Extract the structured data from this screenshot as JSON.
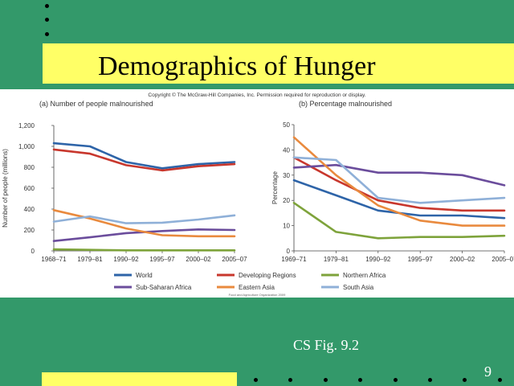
{
  "slide": {
    "title": "Demographics of Hunger",
    "caption": "CS Fig. 9.2",
    "page_number": "9"
  },
  "figure": {
    "copyright": "Copyright © The McGraw-Hill Companies, Inc. Permission required for reproduction or display.",
    "source": "Food and Agriculture Organization 2009"
  },
  "colors": {
    "World": "#2e64a8",
    "Developing Regions": "#c8372d",
    "Northern Africa": "#7ea33b",
    "Sub-Saharan Africa": "#6b4d9c",
    "Eastern Asia": "#e98a3e",
    "South Asia": "#8fb0d8",
    "background": "#33996a",
    "bar": "#ffff66"
  },
  "chart_data": [
    {
      "type": "line",
      "title": "(a) Number of people malnourished",
      "ylabel": "Number of people (millions)",
      "xlabel": "",
      "categories": [
        "1968–71",
        "1979–81",
        "1990–92",
        "1995–97",
        "2000–02",
        "2005–07"
      ],
      "yticks": [
        "0",
        "200",
        "400",
        "600",
        "800",
        "1,000",
        "1,200"
      ],
      "ylim": [
        0,
        1200
      ],
      "grid": false,
      "series": [
        {
          "name": "World",
          "values": [
            1030,
            1000,
            850,
            790,
            830,
            850
          ]
        },
        {
          "name": "Developing Regions",
          "values": [
            970,
            930,
            820,
            770,
            810,
            830
          ]
        },
        {
          "name": "Northern Africa",
          "values": [
            15,
            10,
            5,
            5,
            5,
            5
          ]
        },
        {
          "name": "Sub-Saharan Africa",
          "values": [
            95,
            130,
            170,
            190,
            205,
            200
          ]
        },
        {
          "name": "Eastern Asia",
          "values": [
            390,
            310,
            215,
            150,
            140,
            140
          ]
        },
        {
          "name": "South Asia",
          "values": [
            280,
            330,
            265,
            270,
            300,
            340
          ]
        }
      ]
    },
    {
      "type": "line",
      "title": "(b) Percentage malnourished",
      "ylabel": "Percentage",
      "xlabel": "",
      "categories": [
        "1969–71",
        "1979–81",
        "1990–92",
        "1995–97",
        "2000–02",
        "2005–07"
      ],
      "yticks": [
        "0",
        "10",
        "20",
        "30",
        "40",
        "50"
      ],
      "ylim": [
        0,
        50
      ],
      "grid": false,
      "series": [
        {
          "name": "World",
          "values": [
            28,
            22,
            16,
            14,
            14,
            13
          ]
        },
        {
          "name": "Developing Regions",
          "values": [
            37,
            28,
            20,
            17,
            16,
            16
          ]
        },
        {
          "name": "Northern Africa",
          "values": [
            19,
            7.5,
            5,
            5.5,
            5.5,
            6
          ]
        },
        {
          "name": "Sub-Saharan Africa",
          "values": [
            33,
            34,
            31,
            31,
            30,
            26
          ]
        },
        {
          "name": "Eastern Asia",
          "values": [
            45,
            30,
            18,
            12,
            10,
            10
          ]
        },
        {
          "name": "South Asia",
          "values": [
            37,
            36,
            21,
            19,
            20,
            21
          ]
        }
      ]
    }
  ],
  "legend": [
    "World",
    "Developing Regions",
    "Northern Africa",
    "Sub-Saharan Africa",
    "Eastern Asia",
    "South Asia"
  ]
}
